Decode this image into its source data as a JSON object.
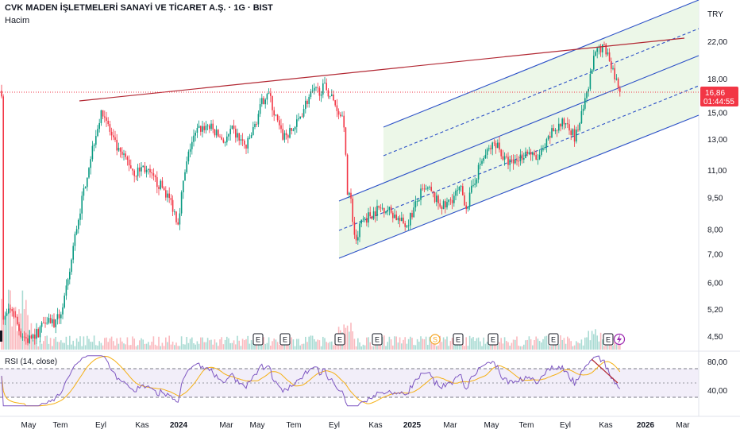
{
  "header": {
    "title": "CVK MADEN İŞLETMELERİ SANAYİ VE TİCARET A.Ş. · 1G · BIST",
    "volume_label": "Hacim",
    "currency": "TRY"
  },
  "price_badge": {
    "price": "16,86",
    "countdown": "01:44:55"
  },
  "rsi_label": "RSI (14, close)",
  "chart_data": {
    "type": "candlestick",
    "y_axis_labels": [
      "22,00",
      "18,00",
      "15,00",
      "13,00",
      "11,00",
      "9,50",
      "8,00",
      "7,00",
      "6,00",
      "5,20",
      "4,50"
    ],
    "y_axis_values": [
      22,
      18,
      15,
      13,
      11,
      9.5,
      8,
      7,
      6,
      5.2,
      4.5
    ],
    "y_scale": "log",
    "x_axis_labels": [
      "May",
      "Tem",
      "Eyl",
      "Kas",
      "2024",
      "Mar",
      "May",
      "Tem",
      "Eyl",
      "Kas",
      "2025",
      "Mar",
      "May",
      "Tem",
      "Eyl",
      "Kas",
      "2026",
      "Mar"
    ],
    "x_axis_bold": [
      "2024",
      "2025",
      "2026"
    ],
    "last_price": 16.86,
    "earnings_markers": [
      "E",
      "E",
      "E",
      "E",
      "S",
      "E",
      "E",
      "E",
      "E"
    ],
    "rsi": {
      "y_axis_labels": [
        "80,00",
        "40,00"
      ],
      "upper_band": 70,
      "lower_band": 30
    },
    "colors": {
      "up": "#089981",
      "down": "#f23645",
      "trendline": "#b22833",
      "channel": "#2a4fc7",
      "channel_fill": "#eaf6e6",
      "rsi_line": "#7e57c2",
      "rsi_ma": "#f5b014",
      "price_badge": "#f23645"
    }
  }
}
